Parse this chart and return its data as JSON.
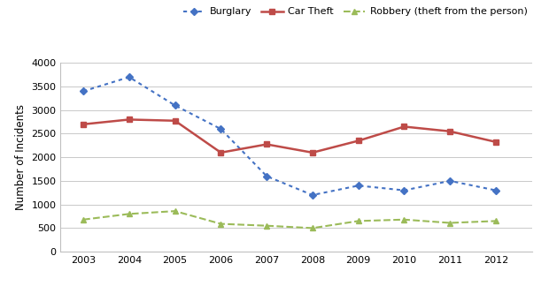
{
  "years": [
    2003,
    2004,
    2005,
    2006,
    2007,
    2008,
    2009,
    2010,
    2011,
    2012
  ],
  "burglary": [
    3400,
    3700,
    3100,
    2600,
    1600,
    1200,
    1400,
    1300,
    1500,
    1300
  ],
  "car_theft": [
    2700,
    2800,
    2775,
    2100,
    2275,
    2100,
    2350,
    2650,
    2550,
    2325
  ],
  "robbery": [
    680,
    800,
    860,
    590,
    550,
    500,
    650,
    680,
    610,
    650
  ],
  "burglary_color": "#4472C4",
  "car_theft_color": "#BE4B48",
  "robbery_color": "#9BBB59",
  "ylabel": "Number of Incidents",
  "ylim": [
    0,
    4000
  ],
  "yticks": [
    0,
    500,
    1000,
    1500,
    2000,
    2500,
    3000,
    3500,
    4000
  ],
  "legend_labels": [
    "Burglary",
    "Car Theft",
    "Robbery (theft from the person)"
  ],
  "bg_color": "#FFFFFF",
  "grid_color": "#C0C0C0"
}
